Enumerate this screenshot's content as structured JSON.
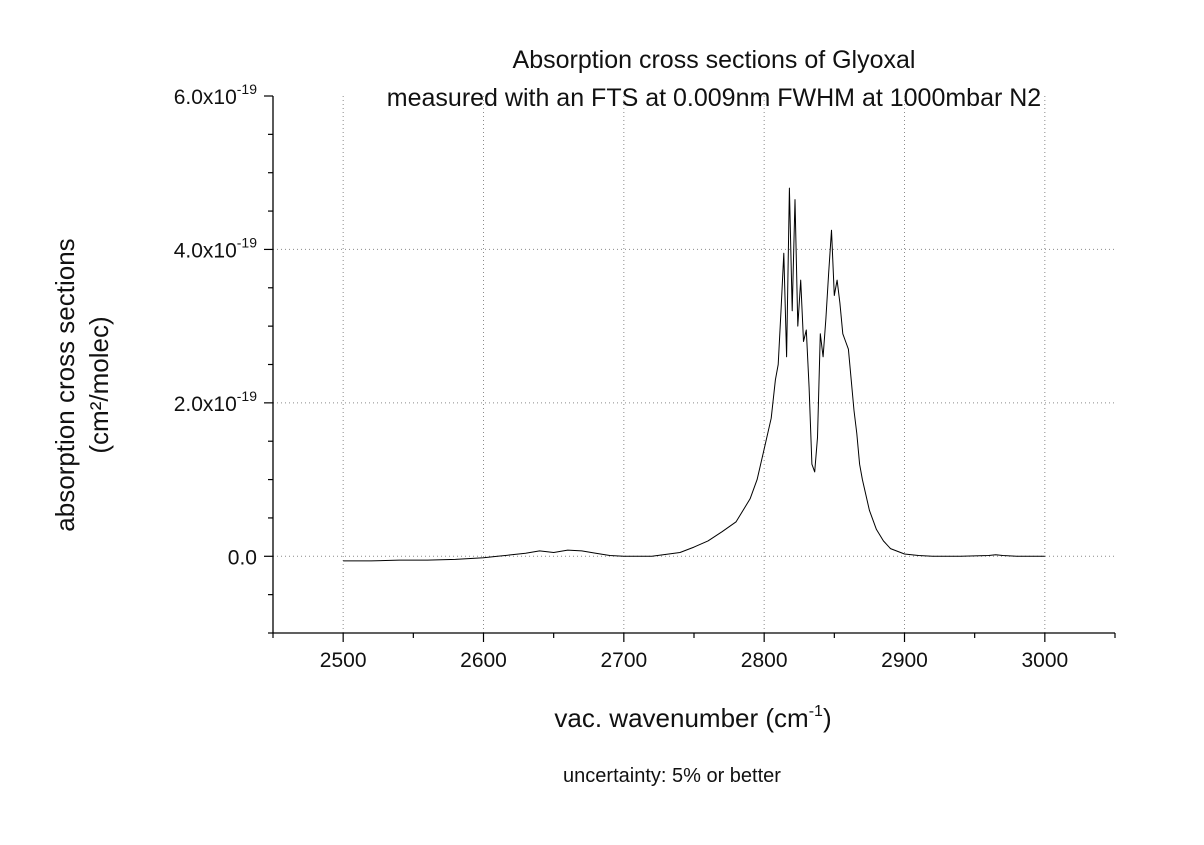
{
  "chart_data": {
    "type": "line",
    "title": "Absorption cross sections of Glyoxal",
    "subtitle": "measured with an FTS at 0.009nm FWHM at 1000mbar N2",
    "xlabel": "vac. wavenumber (cm",
    "xlabel_sup": "-1",
    "xlabel_end": ")",
    "ylabel": "absorption cross sections",
    "ylabel_units": "(cm²/molec)",
    "note": "uncertainty: 5% or better",
    "xlim": [
      2450,
      3050
    ],
    "ylim": [
      -1e-19,
      6e-19
    ],
    "x_ticks": [
      {
        "value": 2500,
        "label": "2500"
      },
      {
        "value": 2600,
        "label": "2600"
      },
      {
        "value": 2700,
        "label": "2700"
      },
      {
        "value": 2800,
        "label": "2800"
      },
      {
        "value": 2900,
        "label": "2900"
      },
      {
        "value": 3000,
        "label": "3000"
      }
    ],
    "y_ticks": [
      {
        "value": 0,
        "label": "0.0",
        "exp": ""
      },
      {
        "value": 2e-19,
        "label": "2.0x10",
        "exp": "-19"
      },
      {
        "value": 4e-19,
        "label": "4.0x10",
        "exp": "-19"
      },
      {
        "value": 6e-19,
        "label": "6.0x10",
        "exp": "-19"
      }
    ],
    "grid": true,
    "line_color": "#000000",
    "series": [
      {
        "x": [
          2500,
          2520,
          2540,
          2560,
          2580,
          2600,
          2610,
          2620,
          2630,
          2640,
          2650,
          2660,
          2670,
          2680,
          2690,
          2700,
          2720,
          2740,
          2750,
          2760,
          2770,
          2780,
          2790,
          2795,
          2800,
          2805,
          2808,
          2810,
          2812,
          2814,
          2816,
          2818,
          2820,
          2822,
          2824,
          2826,
          2828,
          2830,
          2832,
          2834,
          2836,
          2838,
          2840,
          2842,
          2844,
          2846,
          2848,
          2850,
          2852,
          2854,
          2856,
          2858,
          2860,
          2862,
          2864,
          2866,
          2868,
          2870,
          2875,
          2880,
          2885,
          2890,
          2900,
          2910,
          2920,
          2940,
          2960,
          2965,
          2970,
          2980,
          3000
        ],
        "y": [
          -6e-21,
          -6e-21,
          -5e-21,
          -5e-21,
          -4e-21,
          -2e-21,
          0.0,
          2e-21,
          4e-21,
          7e-21,
          5e-21,
          8e-21,
          7e-21,
          4e-21,
          1e-21,
          0.0,
          0.0,
          5e-21,
          1.2e-20,
          2e-20,
          3.2e-20,
          4.5e-20,
          7.5e-20,
          1e-19,
          1.4e-19,
          1.8e-19,
          2.3e-19,
          2.5e-19,
          3.2e-19,
          3.95e-19,
          2.6e-19,
          4.8e-19,
          3.2e-19,
          4.65e-19,
          3e-19,
          3.6e-19,
          2.8e-19,
          2.95e-19,
          2.2e-19,
          1.2e-19,
          1.1e-19,
          1.55e-19,
          2.9e-19,
          2.6e-19,
          3.1e-19,
          3.7e-19,
          4.25e-19,
          3.4e-19,
          3.6e-19,
          3.3e-19,
          2.9e-19,
          2.8e-19,
          2.7e-19,
          2.3e-19,
          1.9e-19,
          1.6e-19,
          1.2e-19,
          1e-19,
          6e-20,
          3.5e-20,
          2e-20,
          1e-20,
          3e-21,
          1e-21,
          0.0,
          0.0,
          1e-21,
          2e-21,
          1e-21,
          0.0,
          0.0
        ]
      }
    ]
  }
}
